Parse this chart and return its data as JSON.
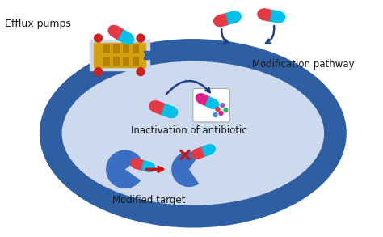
{
  "bg_color": "#ffffff",
  "cell_color": "#2e5fa3",
  "cell_inner_color": "#cdd9ee",
  "label_color": "#1a1a1a",
  "arrow_color": "#1e3f8a",
  "red_arrow_color": "#cc1111",
  "pill_red": "#e63946",
  "pill_cyan": "#00c0e8",
  "pill_pink": "#e0208a",
  "pump_gold": "#d4a010",
  "pump_dark": "#b88000",
  "pump_red": "#cc2222",
  "text_efflux": "Efflux pumps",
  "text_modification": "Modification pathway",
  "text_inactivation": "Inactivation of antibiotic",
  "text_modified": "Modified target"
}
